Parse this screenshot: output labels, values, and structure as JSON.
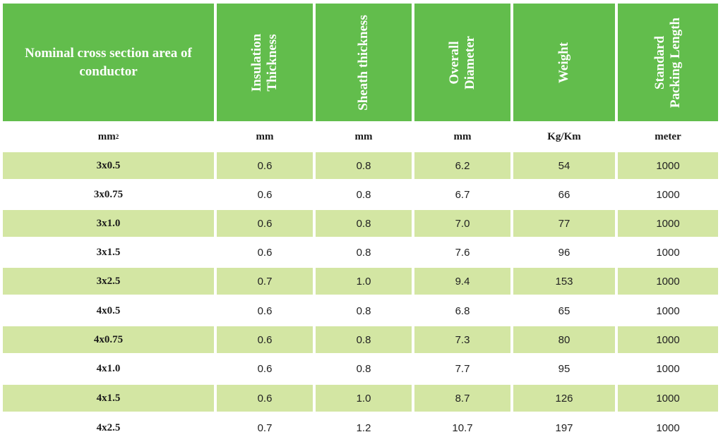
{
  "table": {
    "headers": [
      [
        "Nominal cross section area of",
        "conductor"
      ],
      [
        "Insulation",
        "Thickness"
      ],
      [
        "Sheath thickness"
      ],
      [
        "Overall",
        "Diameter"
      ],
      [
        "Weight"
      ],
      [
        "Standard",
        "Packing Length"
      ]
    ],
    "units": {
      "area": "mm",
      "area_sup": "2",
      "insulation": "mm",
      "sheath": "mm",
      "diameter": "mm",
      "weight": "Kg/Km",
      "length": "meter"
    },
    "rows": [
      [
        "3x0.5",
        "0.6",
        "0.8",
        "6.2",
        "54",
        "1000"
      ],
      [
        "3x0.75",
        "0.6",
        "0.8",
        "6.7",
        "66",
        "1000"
      ],
      [
        "3x1.0",
        "0.6",
        "0.8",
        "7.0",
        "77",
        "1000"
      ],
      [
        "3x1.5",
        "0.6",
        "0.8",
        "7.6",
        "96",
        "1000"
      ],
      [
        "3x2.5",
        "0.7",
        "1.0",
        "9.4",
        "153",
        "1000"
      ],
      [
        "4x0.5",
        "0.6",
        "0.8",
        "6.8",
        "65",
        "1000"
      ],
      [
        "4x0.75",
        "0.6",
        "0.8",
        "7.3",
        "80",
        "1000"
      ],
      [
        "4x1.0",
        "0.6",
        "0.8",
        "7.7",
        "95",
        "1000"
      ],
      [
        "4x1.5",
        "0.6",
        "1.0",
        "8.7",
        "126",
        "1000"
      ],
      [
        "4x2.5",
        "0.7",
        "1.2",
        "10.7",
        "197",
        "1000"
      ]
    ],
    "colors": {
      "header_bg": "#62bd4c",
      "band_bg": "#d3e6a3",
      "header_text": "#ffffff"
    }
  }
}
